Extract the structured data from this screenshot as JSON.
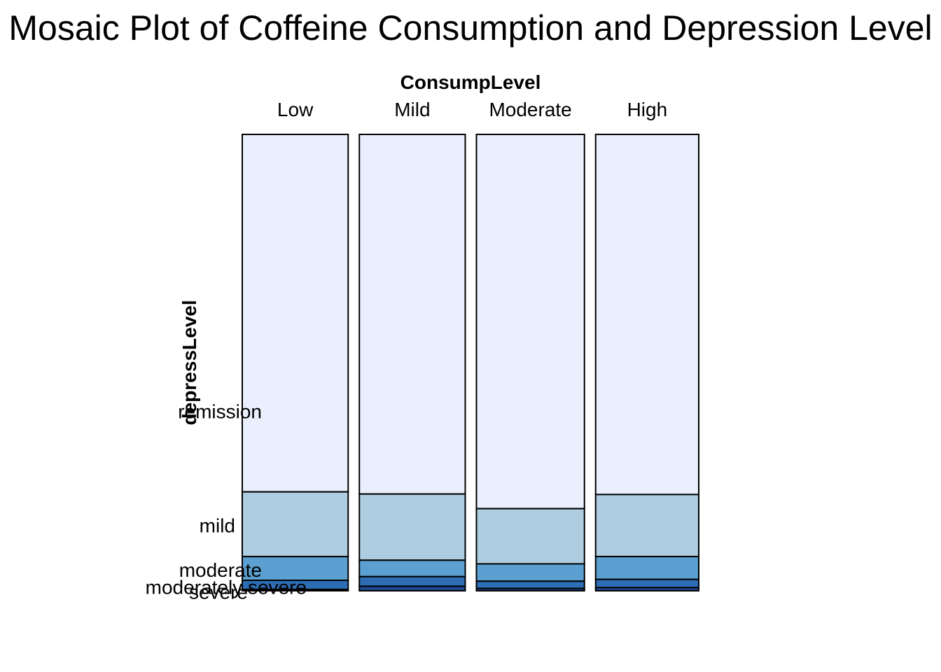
{
  "chart_data": {
    "type": "mosaic",
    "title": "Mosaic Plot of Coffeine Consumption and Depression Level",
    "xlabel": "ConsumpLevel",
    "ylabel": "depressLevel",
    "columns": [
      "Low",
      "Mild",
      "Moderate",
      "High"
    ],
    "column_widths": [
      0.2315,
      0.2315,
      0.2361,
      0.2254
    ],
    "rows": [
      "remission",
      "mild",
      "moderate",
      "moderately severe",
      "severe"
    ],
    "row_label_positions": [
      0.393,
      0.143,
      0.045,
      0.008,
      -0.003
    ],
    "proportions": [
      [
        0.784,
        0.142,
        0.052,
        0.02,
        0.003
      ],
      [
        0.788,
        0.145,
        0.036,
        0.021,
        0.01
      ],
      [
        0.82,
        0.121,
        0.038,
        0.016,
        0.005
      ],
      [
        0.789,
        0.136,
        0.05,
        0.018,
        0.007
      ]
    ],
    "colors": [
      "#eaeffd",
      "#aecde1",
      "#5ba0d0",
      "#2c6db3",
      "#1d4a8f"
    ],
    "border_color": "#000000"
  }
}
